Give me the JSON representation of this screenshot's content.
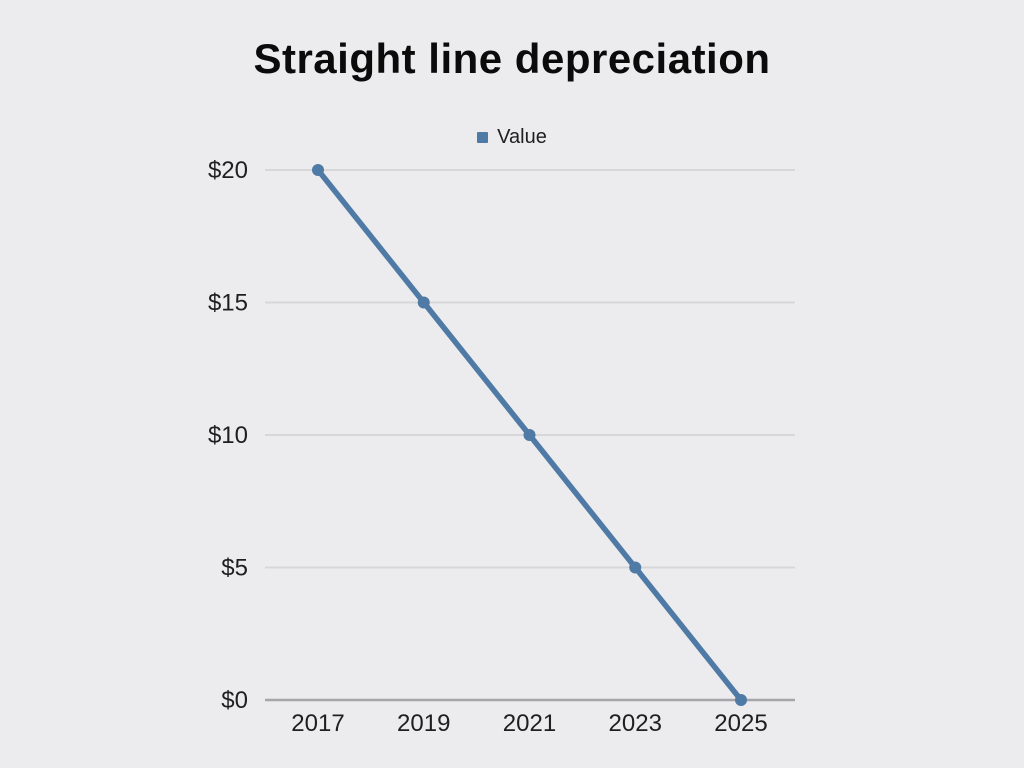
{
  "page": {
    "background_color": "#ececee"
  },
  "chart_data": {
    "type": "line",
    "title": "Straight line depreciation",
    "categories": [
      "2017",
      "2019",
      "2021",
      "2023",
      "2025"
    ],
    "series": [
      {
        "name": "Value",
        "color": "#507aa6",
        "values": [
          20,
          15,
          10,
          5,
          0
        ]
      }
    ],
    "xlabel": "",
    "ylabel": "",
    "ylim": [
      0,
      20
    ],
    "y_ticks": [
      0,
      5,
      10,
      15,
      20
    ],
    "y_tick_labels": [
      "$0",
      "$5",
      "$10",
      "$15",
      "$20"
    ],
    "grid": "horizontal",
    "legend_position": "top-center",
    "legend_marker": "square",
    "gridline_color": "#d7d7d9",
    "axis_line_color": "#a6a6a8",
    "tick_label_color": "#1f1f1f",
    "title_color": "#0b0b0b"
  }
}
